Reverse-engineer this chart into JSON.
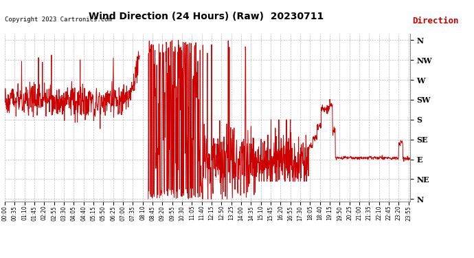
{
  "title": "Wind Direction (24 Hours) (Raw)  20230711",
  "copyright": "Copyright 2023 Cartronics.com",
  "legend_label": "Direction",
  "line_color": "#cc0000",
  "legend_color": "#cc0000",
  "background_color": "#ffffff",
  "grid_color": "#aaaaaa",
  "ylabel_direction_labels": [
    "N",
    "NW",
    "W",
    "SW",
    "S",
    "SE",
    "E",
    "NE",
    "N"
  ],
  "ylabel_direction_values": [
    360,
    315,
    270,
    225,
    180,
    135,
    90,
    45,
    0
  ],
  "ylim": [
    -5,
    375
  ],
  "total_minutes": 1440,
  "figsize": [
    6.9,
    3.75
  ],
  "dpi": 100
}
